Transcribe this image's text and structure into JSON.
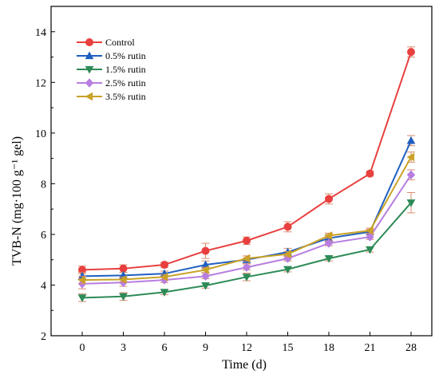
{
  "chart_data": {
    "type": "line",
    "xlabel": "Time (d)",
    "ylabel": "TVB-N (mg·100 g⁻¹ gel)",
    "categories": [
      "0",
      "3",
      "6",
      "9",
      "12",
      "15",
      "18",
      "21",
      "28"
    ],
    "ylim": [
      2,
      15
    ],
    "yticks": [
      2,
      4,
      6,
      8,
      10,
      12,
      14
    ],
    "grid": false,
    "legend_position": "top-left",
    "series": [
      {
        "name": "Control",
        "color": "#e8403f",
        "marker": "circle",
        "values": [
          4.6,
          4.65,
          4.8,
          5.35,
          5.75,
          6.3,
          7.4,
          8.4,
          13.2
        ],
        "errors": [
          0.15,
          0.15,
          0.1,
          0.3,
          0.15,
          0.2,
          0.2,
          0.1,
          0.2
        ]
      },
      {
        "name": "0.5% rutin",
        "color": "#1f5fbf",
        "marker": "triangle-up",
        "values": [
          4.35,
          4.38,
          4.45,
          4.8,
          5.0,
          5.3,
          5.85,
          6.1,
          9.7
        ],
        "errors": [
          0.15,
          0.12,
          0.1,
          0.15,
          0.15,
          0.15,
          0.15,
          0.1,
          0.2
        ]
      },
      {
        "name": "1.5% rutin",
        "color": "#2e8b57",
        "marker": "triangle-down",
        "values": [
          3.5,
          3.55,
          3.72,
          3.98,
          4.32,
          4.62,
          5.05,
          5.4,
          7.25
        ],
        "errors": [
          0.15,
          0.15,
          0.1,
          0.1,
          0.15,
          0.1,
          0.1,
          0.1,
          0.4
        ]
      },
      {
        "name": "2.5% rutin",
        "color": "#b77ee0",
        "marker": "diamond",
        "values": [
          4.05,
          4.1,
          4.2,
          4.35,
          4.7,
          5.05,
          5.65,
          5.9,
          8.35
        ],
        "errors": [
          0.2,
          0.15,
          0.1,
          0.1,
          0.1,
          0.1,
          0.1,
          0.1,
          0.2
        ]
      },
      {
        "name": "3.5% rutin",
        "color": "#c9a227",
        "marker": "triangle-left",
        "values": [
          4.2,
          4.22,
          4.32,
          4.6,
          5.05,
          5.22,
          5.95,
          6.15,
          9.05
        ],
        "errors": [
          0.15,
          0.1,
          0.1,
          0.1,
          0.1,
          0.1,
          0.1,
          0.1,
          0.2
        ]
      }
    ]
  }
}
